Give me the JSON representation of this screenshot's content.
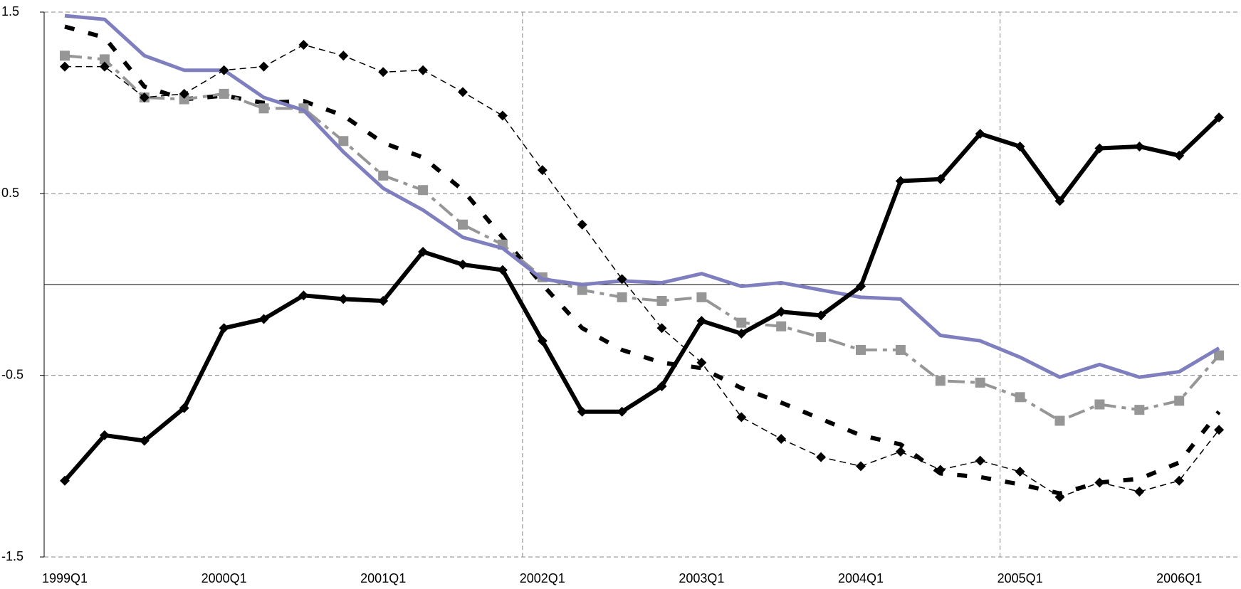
{
  "chart_data": {
    "type": "line",
    "categories": [
      "1999Q1",
      null,
      null,
      null,
      "2000Q1",
      null,
      null,
      null,
      "2001Q1",
      null,
      null,
      null,
      "2002Q1",
      null,
      null,
      null,
      "2003Q1",
      null,
      null,
      null,
      "2004Q1",
      null,
      null,
      null,
      "2005Q1",
      null,
      null,
      null,
      "2006Q1",
      null
    ],
    "series": [
      {
        "color": "#000000",
        "line": "solid-thick",
        "marker": "diamond",
        "values": [
          -1.08,
          -0.83,
          -0.86,
          -0.68,
          -0.24,
          -0.19,
          -0.06,
          -0.08,
          -0.09,
          0.18,
          0.11,
          0.08,
          -0.31,
          -0.7,
          -0.7,
          -0.56,
          -0.2,
          -0.27,
          -0.15,
          -0.17,
          -0.01,
          0.57,
          0.58,
          0.83,
          0.76,
          0.46,
          0.75,
          0.76,
          0.71,
          0.92
        ]
      },
      {
        "color": "#000000",
        "line": "dashed-thin",
        "marker": "diamond",
        "values": [
          1.2,
          1.2,
          1.03,
          1.05,
          1.18,
          1.2,
          1.32,
          1.26,
          1.17,
          1.18,
          1.06,
          0.93,
          0.63,
          0.33,
          0.03,
          -0.24,
          -0.43,
          -0.73,
          -0.85,
          -0.95,
          -1.0,
          -0.92,
          -1.02,
          -0.97,
          -1.03,
          -1.17,
          -1.09,
          -1.14,
          -1.08,
          -0.8
        ]
      },
      {
        "color": "#000000",
        "line": "dashed-thick",
        "values": [
          1.42,
          1.36,
          1.09,
          1.02,
          1.04,
          1.0,
          1.01,
          0.93,
          0.78,
          0.7,
          0.52,
          0.26,
          0.0,
          -0.24,
          -0.36,
          -0.43,
          -0.46,
          -0.57,
          -0.65,
          -0.74,
          -0.83,
          -0.88,
          -1.04,
          -1.06,
          -1.1,
          -1.15,
          -1.09,
          -1.07,
          -0.98,
          -0.7
        ]
      },
      {
        "color": "#969696",
        "line": "dash-dot",
        "marker": "square",
        "values": [
          1.26,
          1.24,
          1.03,
          1.02,
          1.05,
          0.97,
          0.97,
          0.79,
          0.6,
          0.52,
          0.33,
          0.22,
          0.04,
          -0.03,
          -0.07,
          -0.09,
          -0.07,
          -0.21,
          -0.23,
          -0.29,
          -0.36,
          -0.36,
          -0.53,
          -0.54,
          -0.62,
          -0.75,
          -0.66,
          -0.69,
          -0.64,
          -0.39
        ]
      },
      {
        "color": "#7f7fbf",
        "line": "solid",
        "values": [
          1.48,
          1.46,
          1.26,
          1.18,
          1.18,
          1.03,
          0.96,
          0.73,
          0.53,
          0.41,
          0.26,
          0.2,
          0.03,
          0,
          0.02,
          0.01,
          0.06,
          -0.01,
          0.01,
          -0.03,
          -0.07,
          -0.08,
          -0.28,
          -0.31,
          -0.4,
          -0.51,
          -0.44,
          -0.51,
          -0.48,
          -0.35
        ]
      }
    ],
    "ylim": [
      -1.5,
      1.5
    ],
    "yticks": [
      -1.5,
      -0.5,
      0.5,
      1.5
    ],
    "grid": true
  }
}
